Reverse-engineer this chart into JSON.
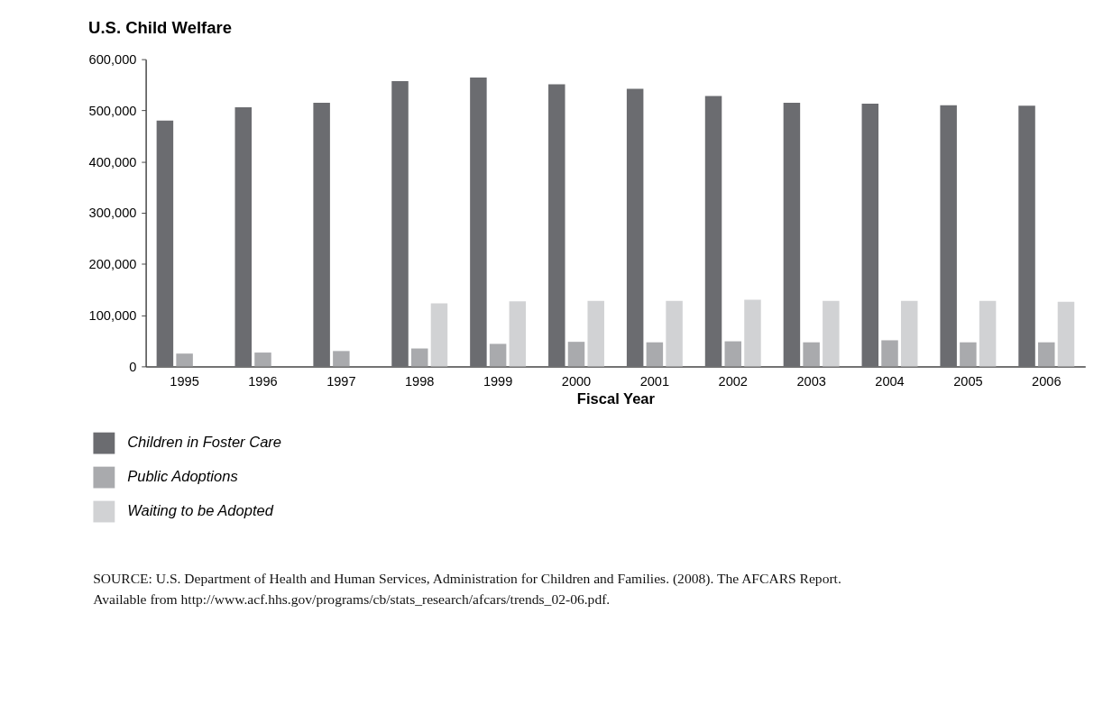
{
  "chart_data": {
    "type": "bar",
    "title": "U.S. Child Welfare",
    "xlabel": "Fiscal Year",
    "categories": [
      "1995",
      "1996",
      "1997",
      "1998",
      "1999",
      "2000",
      "2001",
      "2002",
      "2003",
      "2004",
      "2005",
      "2006"
    ],
    "series": [
      {
        "name": "Children in Foster Care",
        "color": "#6b6c70",
        "values": [
          480000,
          506000,
          515000,
          557000,
          564000,
          551000,
          542000,
          528000,
          515000,
          513000,
          510000,
          509000
        ]
      },
      {
        "name": "Public Adoptions",
        "color": "#a9aaad",
        "values": [
          25000,
          27000,
          30000,
          35000,
          44000,
          48000,
          47000,
          49000,
          47000,
          51000,
          47000,
          47000
        ]
      },
      {
        "name": "Waiting to be Adopted",
        "color": "#d1d2d4",
        "values": [
          null,
          null,
          null,
          123000,
          127000,
          128000,
          128000,
          130000,
          128000,
          128000,
          128000,
          126000
        ]
      }
    ],
    "ylim": [
      0,
      600000
    ],
    "yticks": [
      0,
      {
        "value": 100000,
        "label": "100,000"
      },
      {
        "value": 200000,
        "label": "200,000"
      },
      {
        "value": 300000,
        "label": "300,000"
      },
      {
        "value": 400000,
        "label": "400,000"
      },
      {
        "value": 500000,
        "label": "500,000"
      },
      {
        "value": 600000,
        "label": "600,000"
      }
    ],
    "grid": false,
    "legend": "bottom",
    "annotations": [
      "SOURCE: U.S. Department of Health and Human Services, Administration for Children and Families. (2008). The AFCARS Report. Available from http://www.acf.hhs.gov/programs/cb/stats_research/afcars/trends_02-06.pdf."
    ]
  }
}
